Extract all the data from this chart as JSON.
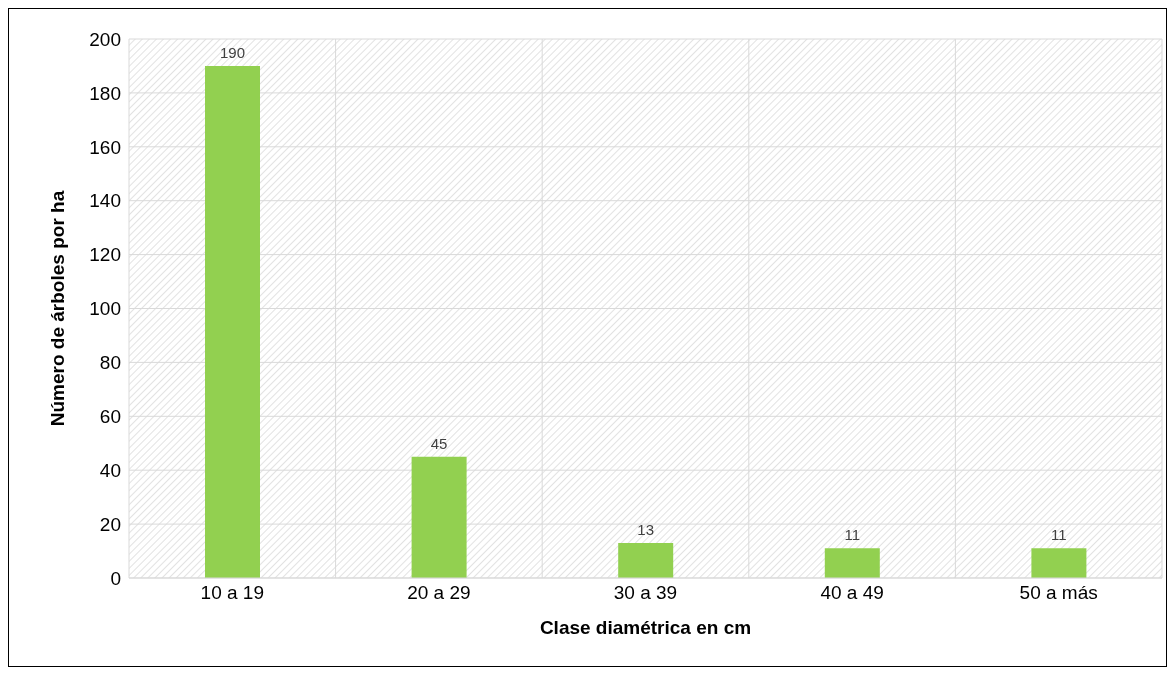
{
  "chart_data": {
    "type": "bar",
    "xlabel": "Clase diamétrica en cm",
    "ylabel": "Número de árboles por ha",
    "categories": [
      "10 a 19",
      "20 a 29",
      "30 a 39",
      "40 a 49",
      "50 a más"
    ],
    "values": [
      190,
      45,
      13,
      11,
      11
    ],
    "color": "#92d050",
    "ylim": [
      0,
      200
    ],
    "yticks": [
      0,
      20,
      40,
      60,
      80,
      100,
      120,
      140,
      160,
      180,
      200
    ],
    "grid": true,
    "data_labels": true
  }
}
